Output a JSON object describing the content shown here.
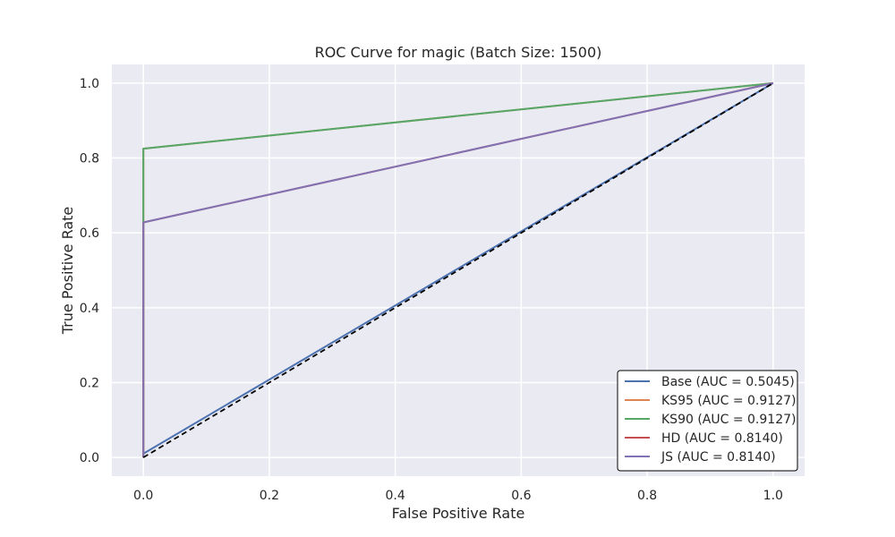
{
  "chart_data": {
    "type": "line",
    "title": "ROC Curve for magic (Batch Size: 1500)",
    "xlabel": "False Positive Rate",
    "ylabel": "True Positive Rate",
    "xlim": [
      -0.05,
      1.05
    ],
    "ylim": [
      -0.05,
      1.05
    ],
    "xticks": [
      0.0,
      0.2,
      0.4,
      0.6,
      0.8,
      1.0
    ],
    "yticks": [
      0.0,
      0.2,
      0.4,
      0.6,
      0.8,
      1.0
    ],
    "xtick_labels": [
      "0.0",
      "0.2",
      "0.4",
      "0.6",
      "0.8",
      "1.0"
    ],
    "ytick_labels": [
      "0.0",
      "0.2",
      "0.4",
      "0.6",
      "0.8",
      "1.0"
    ],
    "grid": true,
    "legend_position": "lower-right",
    "series": [
      {
        "name": "Base (AUC = 0.5045)",
        "color": "#4C72B0",
        "x": [
          0.0,
          0.0,
          1.0
        ],
        "y": [
          0.0,
          0.01,
          1.0
        ]
      },
      {
        "name": "KS95 (AUC = 0.9127)",
        "color": "#DD8452",
        "x": [
          0.0,
          0.0,
          1.0
        ],
        "y": [
          0.0,
          0.825,
          1.0
        ]
      },
      {
        "name": "KS90 (AUC = 0.9127)",
        "color": "#55A868",
        "x": [
          0.0,
          0.0,
          1.0
        ],
        "y": [
          0.0,
          0.825,
          1.0
        ]
      },
      {
        "name": "HD (AUC = 0.8140)",
        "color": "#C44E52",
        "x": [
          0.0,
          0.0,
          1.0
        ],
        "y": [
          0.0,
          0.628,
          1.0
        ]
      },
      {
        "name": "JS (AUC = 0.8140)",
        "color": "#8172B3",
        "x": [
          0.0,
          0.0,
          1.0
        ],
        "y": [
          0.0,
          0.628,
          1.0
        ]
      }
    ],
    "reference_line": {
      "color": "#000000",
      "style": "dashed",
      "x": [
        0.0,
        1.0
      ],
      "y": [
        0.0,
        1.0
      ]
    }
  },
  "colors": {
    "plot_background": "#EAEAF2",
    "grid": "#FFFFFF",
    "text": "#262626"
  }
}
